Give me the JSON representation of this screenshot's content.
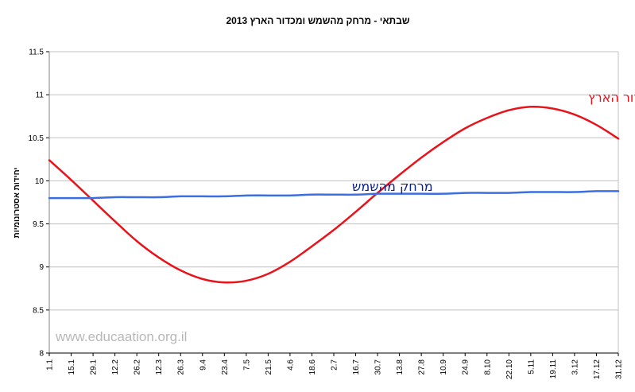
{
  "chart_data": {
    "type": "line",
    "title": "שבתאי - מרחק מהשמש ומכדור הארץ 2013",
    "xlabel": "",
    "ylabel": "יחידות אסטרונומיות",
    "ylim": [
      8,
      11.5
    ],
    "yticks": [
      "8",
      "8.5",
      "9",
      "9.5",
      "10",
      "10.5",
      "11",
      "11.5"
    ],
    "grid": "horizontal",
    "x": [
      "1.1",
      "15.1",
      "29.1",
      "12.2",
      "26.2",
      "12.3",
      "26.3",
      "9.4",
      "23.4",
      "7.5",
      "21.5",
      "4.6",
      "18.6",
      "2.7",
      "16.7",
      "30.7",
      "13.8",
      "27.8",
      "10.9",
      "24.9",
      "8.10",
      "22.10",
      "5.11",
      "19.11",
      "3.12",
      "17.12",
      "31.12"
    ],
    "series": [
      {
        "name": "מרחק מכדור הארץ",
        "color": "#e8131b",
        "values": [
          10.24,
          10.01,
          9.77,
          9.53,
          9.3,
          9.11,
          8.96,
          8.86,
          8.82,
          8.84,
          8.92,
          9.06,
          9.24,
          9.43,
          9.64,
          9.86,
          10.07,
          10.27,
          10.45,
          10.61,
          10.73,
          10.82,
          10.86,
          10.84,
          10.77,
          10.65,
          10.49
        ]
      },
      {
        "name": "מרחק מהשמש",
        "color": "#3b6ee0",
        "values": [
          9.8,
          9.8,
          9.8,
          9.81,
          9.81,
          9.81,
          9.82,
          9.82,
          9.82,
          9.83,
          9.83,
          9.83,
          9.84,
          9.84,
          9.84,
          9.85,
          9.85,
          9.85,
          9.85,
          9.86,
          9.86,
          9.86,
          9.87,
          9.87,
          9.87,
          9.88,
          9.88
        ]
      }
    ],
    "watermark": "www.educaation.org.il"
  }
}
